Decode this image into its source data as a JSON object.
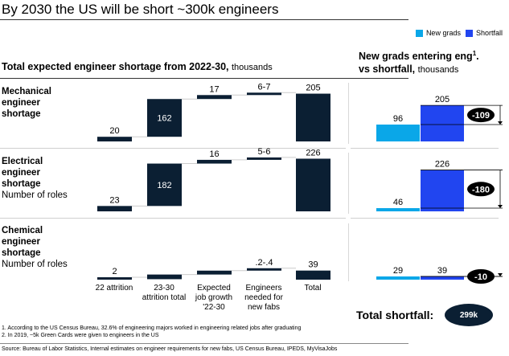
{
  "header": {
    "title": "By 2030 the US will be short ~300k engineers"
  },
  "legend": {
    "items": [
      {
        "label": "New grads",
        "color": "#0aa7e8"
      },
      {
        "label": "Shortfall",
        "color": "#2145f0"
      }
    ]
  },
  "left_section": {
    "title": "Total expected engineer shortage from 2022-30,",
    "unit": "thousands"
  },
  "right_section": {
    "title_line1": "New grads entering eng",
    "title_sup": "1",
    "title_line1_end": ".",
    "title_line2": "vs shortfall,",
    "unit": "thousands"
  },
  "rows": [
    {
      "label_bold": [
        "Mechanical",
        "engineer",
        "shortage"
      ],
      "label_normal": ""
    },
    {
      "label_bold": [
        "Electrical",
        "engineer",
        "shortage"
      ],
      "label_normal": "Number of roles"
    },
    {
      "label_bold": [
        "Chemical",
        "engineer",
        "shortage"
      ],
      "label_normal": "Number of roles"
    }
  ],
  "categories": [
    [
      "22 attrition"
    ],
    [
      "23-30",
      "attrition total"
    ],
    [
      "Expected",
      "job growth",
      "'22-30"
    ],
    [
      "Engineers",
      "needed for",
      "new fabs"
    ],
    [
      "Total"
    ]
  ],
  "totals": {
    "label": "Total shortfall:",
    "value": "299k"
  },
  "footnotes": [
    "1.   According to the US Census Bureau, 32.6% of engineering majors worked in engineering related jobs after graduating",
    "2.   In 2019, ~5k Green Cards were given to engineers in the US"
  ],
  "source": "Source: Bureau of Labor Statistics, Internal estimates on engineer requirements for new fabs, US Census Bureau, IPEDS, MyVisaJobs",
  "colors": {
    "bar_dark": "#0b1f33",
    "new_grads": "#0aa7e8",
    "shortfall": "#2145f0",
    "gap_badge": "#000000"
  },
  "chart_data": [
    {
      "type": "bar",
      "subtype": "waterfall",
      "title": "Mechanical engineer shortage",
      "unit": "thousands",
      "categories": [
        "22 attrition",
        "23-30 attrition total",
        "Expected job growth '22-30",
        "Engineers needed for new fabs",
        "Total"
      ],
      "values": [
        20,
        162,
        17,
        6.5,
        205
      ],
      "labels": [
        "20",
        "162",
        "17",
        "6-7",
        "205"
      ],
      "is_total": [
        false,
        false,
        false,
        false,
        true
      ]
    },
    {
      "type": "bar",
      "subtype": "waterfall",
      "title": "Electrical engineer shortage",
      "unit": "thousands",
      "categories": [
        "22 attrition",
        "23-30 attrition total",
        "Expected job growth '22-30",
        "Engineers needed for new fabs",
        "Total"
      ],
      "values": [
        23,
        182,
        16,
        5.5,
        226
      ],
      "labels": [
        "23",
        "182",
        "16",
        "5-6",
        "226"
      ],
      "is_total": [
        false,
        false,
        false,
        false,
        true
      ]
    },
    {
      "type": "bar",
      "subtype": "waterfall",
      "title": "Chemical engineer shortage",
      "unit": "thousands",
      "categories": [
        "22 attrition",
        "23-30 attrition total",
        "Expected job growth '22-30",
        "Engineers needed for new fabs",
        "Total"
      ],
      "values": [
        2,
        20,
        16.7,
        0.3,
        39
      ],
      "labels": [
        "2",
        "",
        "",
        ".2-.4",
        "39"
      ],
      "is_total": [
        false,
        false,
        false,
        false,
        true
      ]
    },
    {
      "type": "bar",
      "title": "New grads entering eng. vs shortfall",
      "unit": "thousands",
      "categories": [
        "Mechanical",
        "Electrical",
        "Chemical"
      ],
      "series": [
        {
          "name": "New grads",
          "values": [
            96,
            46,
            29
          ]
        },
        {
          "name": "Shortfall",
          "values": [
            205,
            226,
            39
          ]
        }
      ],
      "gap_labels": [
        "-109",
        "-180",
        "-10"
      ]
    }
  ]
}
